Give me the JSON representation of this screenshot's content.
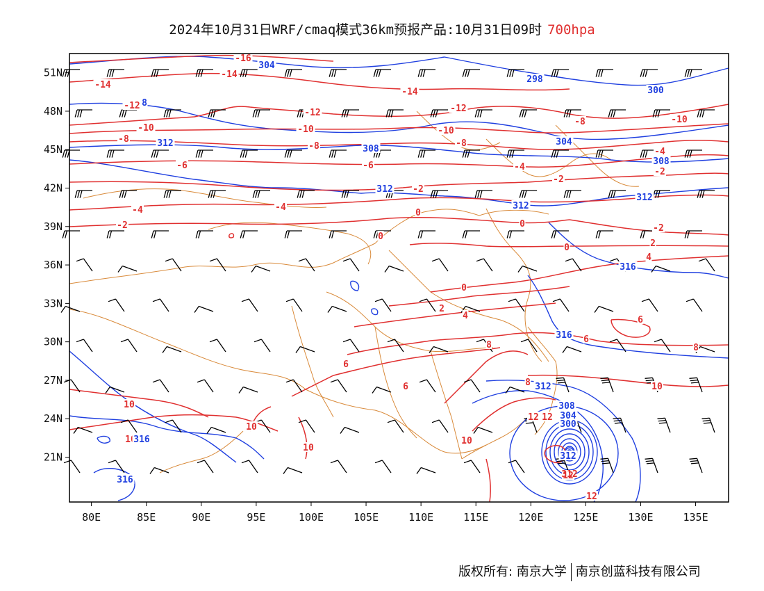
{
  "title": {
    "main": "2024年10月31日WRF/cmaq模式36km预报产品:10月31日09时",
    "level": "700hpa",
    "level_color": "#e03030"
  },
  "map": {
    "lon_range": [
      78,
      138
    ],
    "lat_range": [
      17.5,
      52.5
    ],
    "lon_ticks": [
      "80E",
      "85E",
      "90E",
      "95E",
      "100E",
      "105E",
      "110E",
      "115E",
      "120E",
      "125E",
      "130E",
      "135E"
    ],
    "lat_ticks": [
      "21N",
      "24N",
      "27N",
      "30N",
      "33N",
      "36N",
      "39N",
      "42N",
      "45N",
      "48N",
      "51N"
    ],
    "temperature_color": "#e03030",
    "height_color": "#2040e0",
    "border_color": "#d98a3a",
    "wind_color": "#000000",
    "temperature_labels": [
      "-16",
      "-14",
      "-14",
      "-14",
      "-12",
      "-12",
      "-12",
      "-10",
      "-10",
      "-10",
      "-10",
      "-8",
      "-8",
      "-8",
      "-8",
      "-6",
      "-6",
      "-4",
      "-4",
      "-4",
      "-4",
      "-2",
      "-2",
      "-2",
      "-2",
      "-2",
      "0",
      "0",
      "0",
      "0",
      "0",
      "2",
      "2",
      "4",
      "4",
      "6",
      "6",
      "6",
      "6",
      "8",
      "8",
      "8",
      "10",
      "10",
      "10",
      "10",
      "10",
      "10",
      "12",
      "12",
      "12",
      "12"
    ],
    "height_labels": [
      "304",
      "298",
      "300",
      "312",
      "308",
      "304",
      "308",
      "312",
      "312",
      "312",
      "316",
      "316",
      "312",
      "308",
      "304",
      "300",
      "316",
      "316",
      "312",
      "8"
    ],
    "cyclone_center_label": "312"
  },
  "credit": {
    "left": "版权所有: 南京大学",
    "right": "南京创蓝科技有限公司"
  }
}
